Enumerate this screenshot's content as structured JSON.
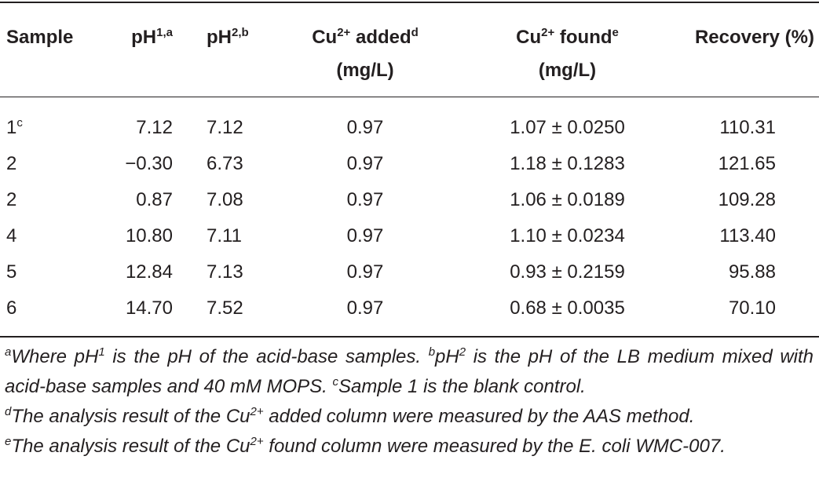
{
  "table": {
    "header": [
      [
        [
          {
            "text": "Sample"
          }
        ]
      ],
      [
        [
          {
            "text": "pH"
          },
          {
            "sup": "1,a"
          }
        ]
      ],
      [
        [
          {
            "text": "pH"
          },
          {
            "sup": "2,b"
          }
        ]
      ],
      [
        [
          {
            "text": "Cu"
          },
          {
            "sup": "2+"
          },
          {
            "text": " added"
          },
          {
            "sup": "d"
          }
        ],
        [
          {
            "text": "(mg/L)"
          }
        ]
      ],
      [
        [
          {
            "text": "Cu"
          },
          {
            "sup": "2+"
          },
          {
            "text": " found"
          },
          {
            "sup": "e"
          }
        ],
        [
          {
            "text": "(mg/L)"
          }
        ]
      ],
      [
        [
          {
            "text": "Recovery (%)"
          }
        ]
      ]
    ],
    "rows": [
      [
        [
          {
            "text": "1"
          },
          {
            "sup": "c"
          }
        ],
        "7.12",
        "7.12",
        "0.97",
        "1.07 ± 0.0250",
        "110.31"
      ],
      [
        "2",
        "−0.30",
        "6.73",
        "0.97",
        "1.18 ± 0.1283",
        "121.65"
      ],
      [
        "2",
        "0.87",
        "7.08",
        "0.97",
        "1.06 ± 0.0189",
        "109.28"
      ],
      [
        "4",
        "10.80",
        "7.11",
        "0.97",
        "1.10 ± 0.0234",
        "113.40"
      ],
      [
        "5",
        "12.84",
        "7.13",
        "0.97",
        "0.93 ± 0.2159",
        "95.88"
      ],
      [
        "6",
        "14.70",
        "7.52",
        "0.97",
        "0.68 ± 0.0035",
        "70.10"
      ]
    ]
  },
  "footnotes": [
    [
      {
        "sup": "a"
      },
      {
        "text": "Where pH"
      },
      {
        "sup": "1"
      },
      {
        "text": " is the pH of the acid-base samples. "
      },
      {
        "sup": "b"
      },
      {
        "text": "pH"
      },
      {
        "sup": "2"
      },
      {
        "text": " is the pH of the LB medium mixed with acid-base samples and 40 mM MOPS. "
      },
      {
        "sup": "c"
      },
      {
        "text": "Sample 1 is the blank control."
      }
    ],
    [
      {
        "sup": "d"
      },
      {
        "text": "The analysis result of the Cu"
      },
      {
        "sup": "2+"
      },
      {
        "text": " added column were measured by the AAS method."
      }
    ],
    [
      {
        "sup": "e"
      },
      {
        "text": "The analysis result of the Cu"
      },
      {
        "sup": "2+"
      },
      {
        "text": " found column were measured by the E. coli WMC-007."
      }
    ]
  ]
}
